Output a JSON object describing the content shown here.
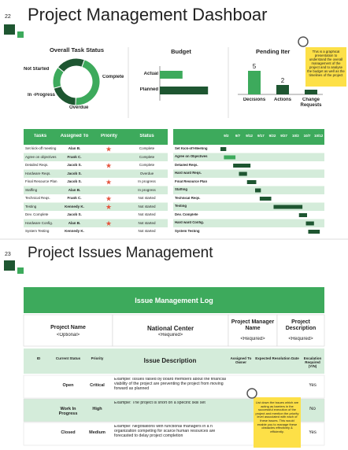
{
  "slide1": {
    "number": "22",
    "title": "Project Management Dashboar",
    "task_status": {
      "title": "Overall Task Status",
      "categories": [
        "Complete",
        "Overdue",
        "In -Progress",
        "Not Started"
      ],
      "values": [
        45,
        20,
        15,
        20
      ],
      "colors": [
        "#3daa5c",
        "#1e5631",
        "#3daa5c",
        "#1e5631"
      ]
    },
    "budget": {
      "title": "Budget",
      "categories": [
        "Actual",
        "Planned"
      ],
      "values": [
        4,
        8.5
      ],
      "xlim": [
        0,
        10
      ],
      "colors": [
        "#3daa5c",
        "#1e5631"
      ]
    },
    "pending": {
      "title": "Pending Iter",
      "categories": [
        "Decisions",
        "Actions",
        "Change Requests"
      ],
      "values": [
        5,
        2,
        1
      ],
      "value_labels": [
        "5",
        "2",
        null
      ],
      "ylim": [
        0,
        6
      ],
      "colors": [
        "#3daa5c",
        "#1e5631",
        "#1e5631"
      ]
    },
    "note": "This is a graphical presentation to understand the overall management of the project and to analyse the budget as well as the timelines of the project",
    "tasks": {
      "headers": [
        "Tasks",
        "Assigned To",
        "Priority",
        "Status"
      ],
      "rows": [
        [
          "Set kick-off meeting",
          "Alan B.",
          "Complete"
        ],
        [
          "Agree on objectives",
          "Frank C.",
          "Complete"
        ],
        [
          "Detailed Reqs.",
          "Jacob S.",
          "Complete"
        ],
        [
          "Hardware Reqs.",
          "Jacob S.",
          "Overdue"
        ],
        [
          "Final Resource Plan",
          "Jacob S.",
          "In progress"
        ],
        [
          "Staffing",
          "Alan B.",
          "In progress"
        ],
        [
          "Technical Reqs.",
          "Frank C.",
          "Not started"
        ],
        [
          "Testing",
          "Kennedy K.",
          "Not started"
        ],
        [
          "Dev. Complete",
          "Jacob S.",
          "Not started"
        ],
        [
          "Hardware Config.",
          "Alan B.",
          "Not started"
        ],
        [
          "System Testing",
          "Kennedy K.",
          "Not started"
        ]
      ],
      "high_priority": [
        true,
        false,
        true,
        false,
        true,
        false,
        true,
        true,
        false,
        true,
        false
      ]
    },
    "gantt": {
      "dates": [
        "9/2",
        "9/7",
        "9/12",
        "9/17",
        "9/22",
        "9/27",
        "10/2",
        "10/7",
        "10/12"
      ],
      "tasks": [
        "Set Kick-off-Meeting",
        "Agree on Objectives",
        "Detailed Reqs.",
        "Hard ward Reqs.",
        "Final Resource Plan",
        "Staffing",
        "Technical Reqs.",
        "Testing",
        "Dev. Complete",
        "Hard ward Config.",
        "System Testing"
      ],
      "start": [
        0,
        0.3,
        1.1,
        1.6,
        2.3,
        3,
        3.4,
        4.6,
        6.8,
        7.4,
        7.6
      ],
      "duration": [
        0.5,
        1,
        1.5,
        0.7,
        0.8,
        0.5,
        1,
        2.5,
        0.7,
        0.7,
        1
      ]
    }
  },
  "slide2": {
    "number": "23",
    "title": "Project Issues Management",
    "banner": "Issue Management Log",
    "project_fields": [
      [
        "Project Name",
        "<Optional>"
      ],
      [
        "National Center",
        "<Required>"
      ],
      [
        "Project Manager Name",
        "<Required>"
      ],
      [
        "Project Description",
        "<Required>"
      ]
    ],
    "headers": [
      "ID",
      "Current Status",
      "Priority",
      "Issue Description",
      "Assigned To Owner",
      "Expected Resolution Date",
      "Escalation Required (Y/N)"
    ],
    "rows": [
      [
        "Open",
        "Critical",
        "Example: Issues raised by board members about the financial viability of the project are preventing the project from moving forward as planned",
        "Yes"
      ],
      [
        "Work In Progress",
        "High",
        "Example: The project is short on a specific skill set",
        "No"
      ],
      [
        "Closed",
        "Medium",
        "Example: Negotiations with functional managers in a n organization competing for scarce human resources are forecasted to delay project completion",
        "Yes"
      ]
    ],
    "note": "List down the issues which are acting as barriers in the successful execution of the project and mention the priority level associated with each of these issues. This would enable you to manage these obstacles effectively & efficiently."
  }
}
